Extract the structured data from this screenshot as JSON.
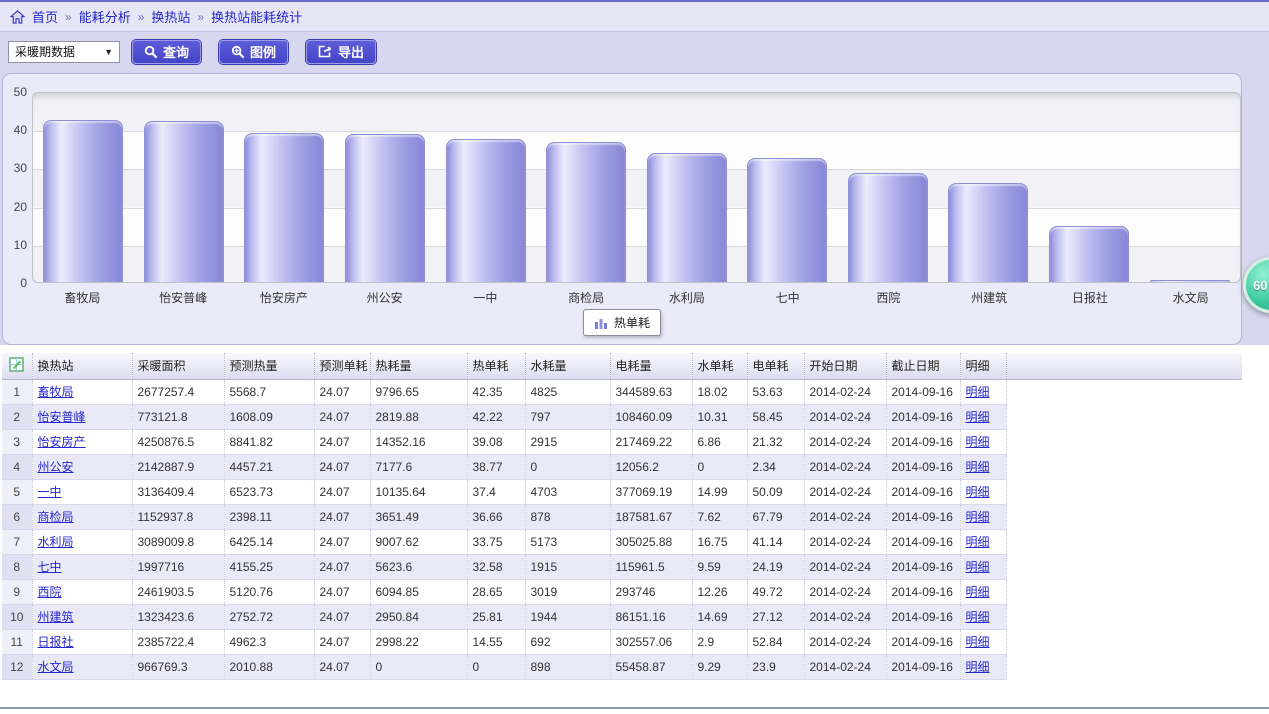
{
  "breadcrumb": {
    "items": [
      "首页",
      "能耗分析",
      "换热站",
      "换热站能耗统计"
    ]
  },
  "toolbar": {
    "period_select": {
      "value": "采暖期数据"
    },
    "query_label": "查询",
    "legend_label": "图例",
    "export_label": "导出"
  },
  "chart_data": {
    "type": "bar",
    "title": "",
    "categories": [
      "畜牧局",
      "怡安普峰",
      "怡安房产",
      "州公安",
      "一中",
      "商检局",
      "水利局",
      "七中",
      "西院",
      "州建筑",
      "日报社",
      "水文局"
    ],
    "values": [
      42.35,
      42.22,
      39.08,
      38.77,
      37.4,
      36.66,
      33.75,
      32.58,
      28.65,
      25.81,
      14.55,
      0
    ],
    "series_name": "热单耗",
    "xlabel": "",
    "ylabel": "",
    "ylim": [
      0,
      50
    ],
    "yticks": [
      0,
      10,
      20,
      30,
      40,
      50
    ],
    "grid": true,
    "legend": {
      "label": "热单耗",
      "position": "bottom-center"
    }
  },
  "refresh_badge": {
    "label": "60"
  },
  "table": {
    "headers": [
      "换热站",
      "采暖面积",
      "预测热量",
      "预测单耗",
      "热耗量",
      "热单耗",
      "水耗量",
      "电耗量",
      "水单耗",
      "电单耗",
      "开始日期",
      "截止日期",
      "明细"
    ],
    "detail_label": "明细",
    "rows": [
      {
        "index": 1,
        "station": "畜牧局",
        "values": [
          "2677257.4",
          "5568.7",
          "24.07",
          "9796.65",
          "42.35",
          "4825",
          "344589.63",
          "18.02",
          "53.63",
          "2014-02-24",
          "2014-09-16"
        ]
      },
      {
        "index": 2,
        "station": "怡安普峰",
        "values": [
          "773121.8",
          "1608.09",
          "24.07",
          "2819.88",
          "42.22",
          "797",
          "108460.09",
          "10.31",
          "58.45",
          "2014-02-24",
          "2014-09-16"
        ]
      },
      {
        "index": 3,
        "station": "怡安房产",
        "values": [
          "4250876.5",
          "8841.82",
          "24.07",
          "14352.16",
          "39.08",
          "2915",
          "217469.22",
          "6.86",
          "21.32",
          "2014-02-24",
          "2014-09-16"
        ]
      },
      {
        "index": 4,
        "station": "州公安",
        "values": [
          "2142887.9",
          "4457.21",
          "24.07",
          "7177.6",
          "38.77",
          "0",
          "12056.2",
          "0",
          "2.34",
          "2014-02-24",
          "2014-09-16"
        ]
      },
      {
        "index": 5,
        "station": "一中",
        "values": [
          "3136409.4",
          "6523.73",
          "24.07",
          "10135.64",
          "37.4",
          "4703",
          "377069.19",
          "14.99",
          "50.09",
          "2014-02-24",
          "2014-09-16"
        ]
      },
      {
        "index": 6,
        "station": "商检局",
        "values": [
          "1152937.8",
          "2398.11",
          "24.07",
          "3651.49",
          "36.66",
          "878",
          "187581.67",
          "7.62",
          "67.79",
          "2014-02-24",
          "2014-09-16"
        ]
      },
      {
        "index": 7,
        "station": "水利局",
        "values": [
          "3089009.8",
          "6425.14",
          "24.07",
          "9007.62",
          "33.75",
          "5173",
          "305025.88",
          "16.75",
          "41.14",
          "2014-02-24",
          "2014-09-16"
        ]
      },
      {
        "index": 8,
        "station": "七中",
        "values": [
          "1997716",
          "4155.25",
          "24.07",
          "5623.6",
          "32.58",
          "1915",
          "115961.5",
          "9.59",
          "24.19",
          "2014-02-24",
          "2014-09-16"
        ]
      },
      {
        "index": 9,
        "station": "西院",
        "values": [
          "2461903.5",
          "5120.76",
          "24.07",
          "6094.85",
          "28.65",
          "3019",
          "293746",
          "12.26",
          "49.72",
          "2014-02-24",
          "2014-09-16"
        ]
      },
      {
        "index": 10,
        "station": "州建筑",
        "values": [
          "1323423.6",
          "2752.72",
          "24.07",
          "2950.84",
          "25.81",
          "1944",
          "86151.16",
          "14.69",
          "27.12",
          "2014-02-24",
          "2014-09-16"
        ]
      },
      {
        "index": 11,
        "station": "日报社",
        "values": [
          "2385722.4",
          "4962.3",
          "24.07",
          "2998.22",
          "14.55",
          "692",
          "302557.06",
          "2.9",
          "52.84",
          "2014-02-24",
          "2014-09-16"
        ]
      },
      {
        "index": 12,
        "station": "水文局",
        "values": [
          "966769.3",
          "2010.88",
          "24.07",
          "0",
          "0",
          "898",
          "55458.87",
          "9.29",
          "23.9",
          "2014-02-24",
          "2014-09-16"
        ]
      }
    ]
  },
  "colors": {
    "accent_button": "#4a4acc",
    "bar_fill": "#aaaae8",
    "badge_green": "#2fbd97",
    "link_blue": "#2828cc",
    "lavender_bg": "#d7d7ef"
  }
}
